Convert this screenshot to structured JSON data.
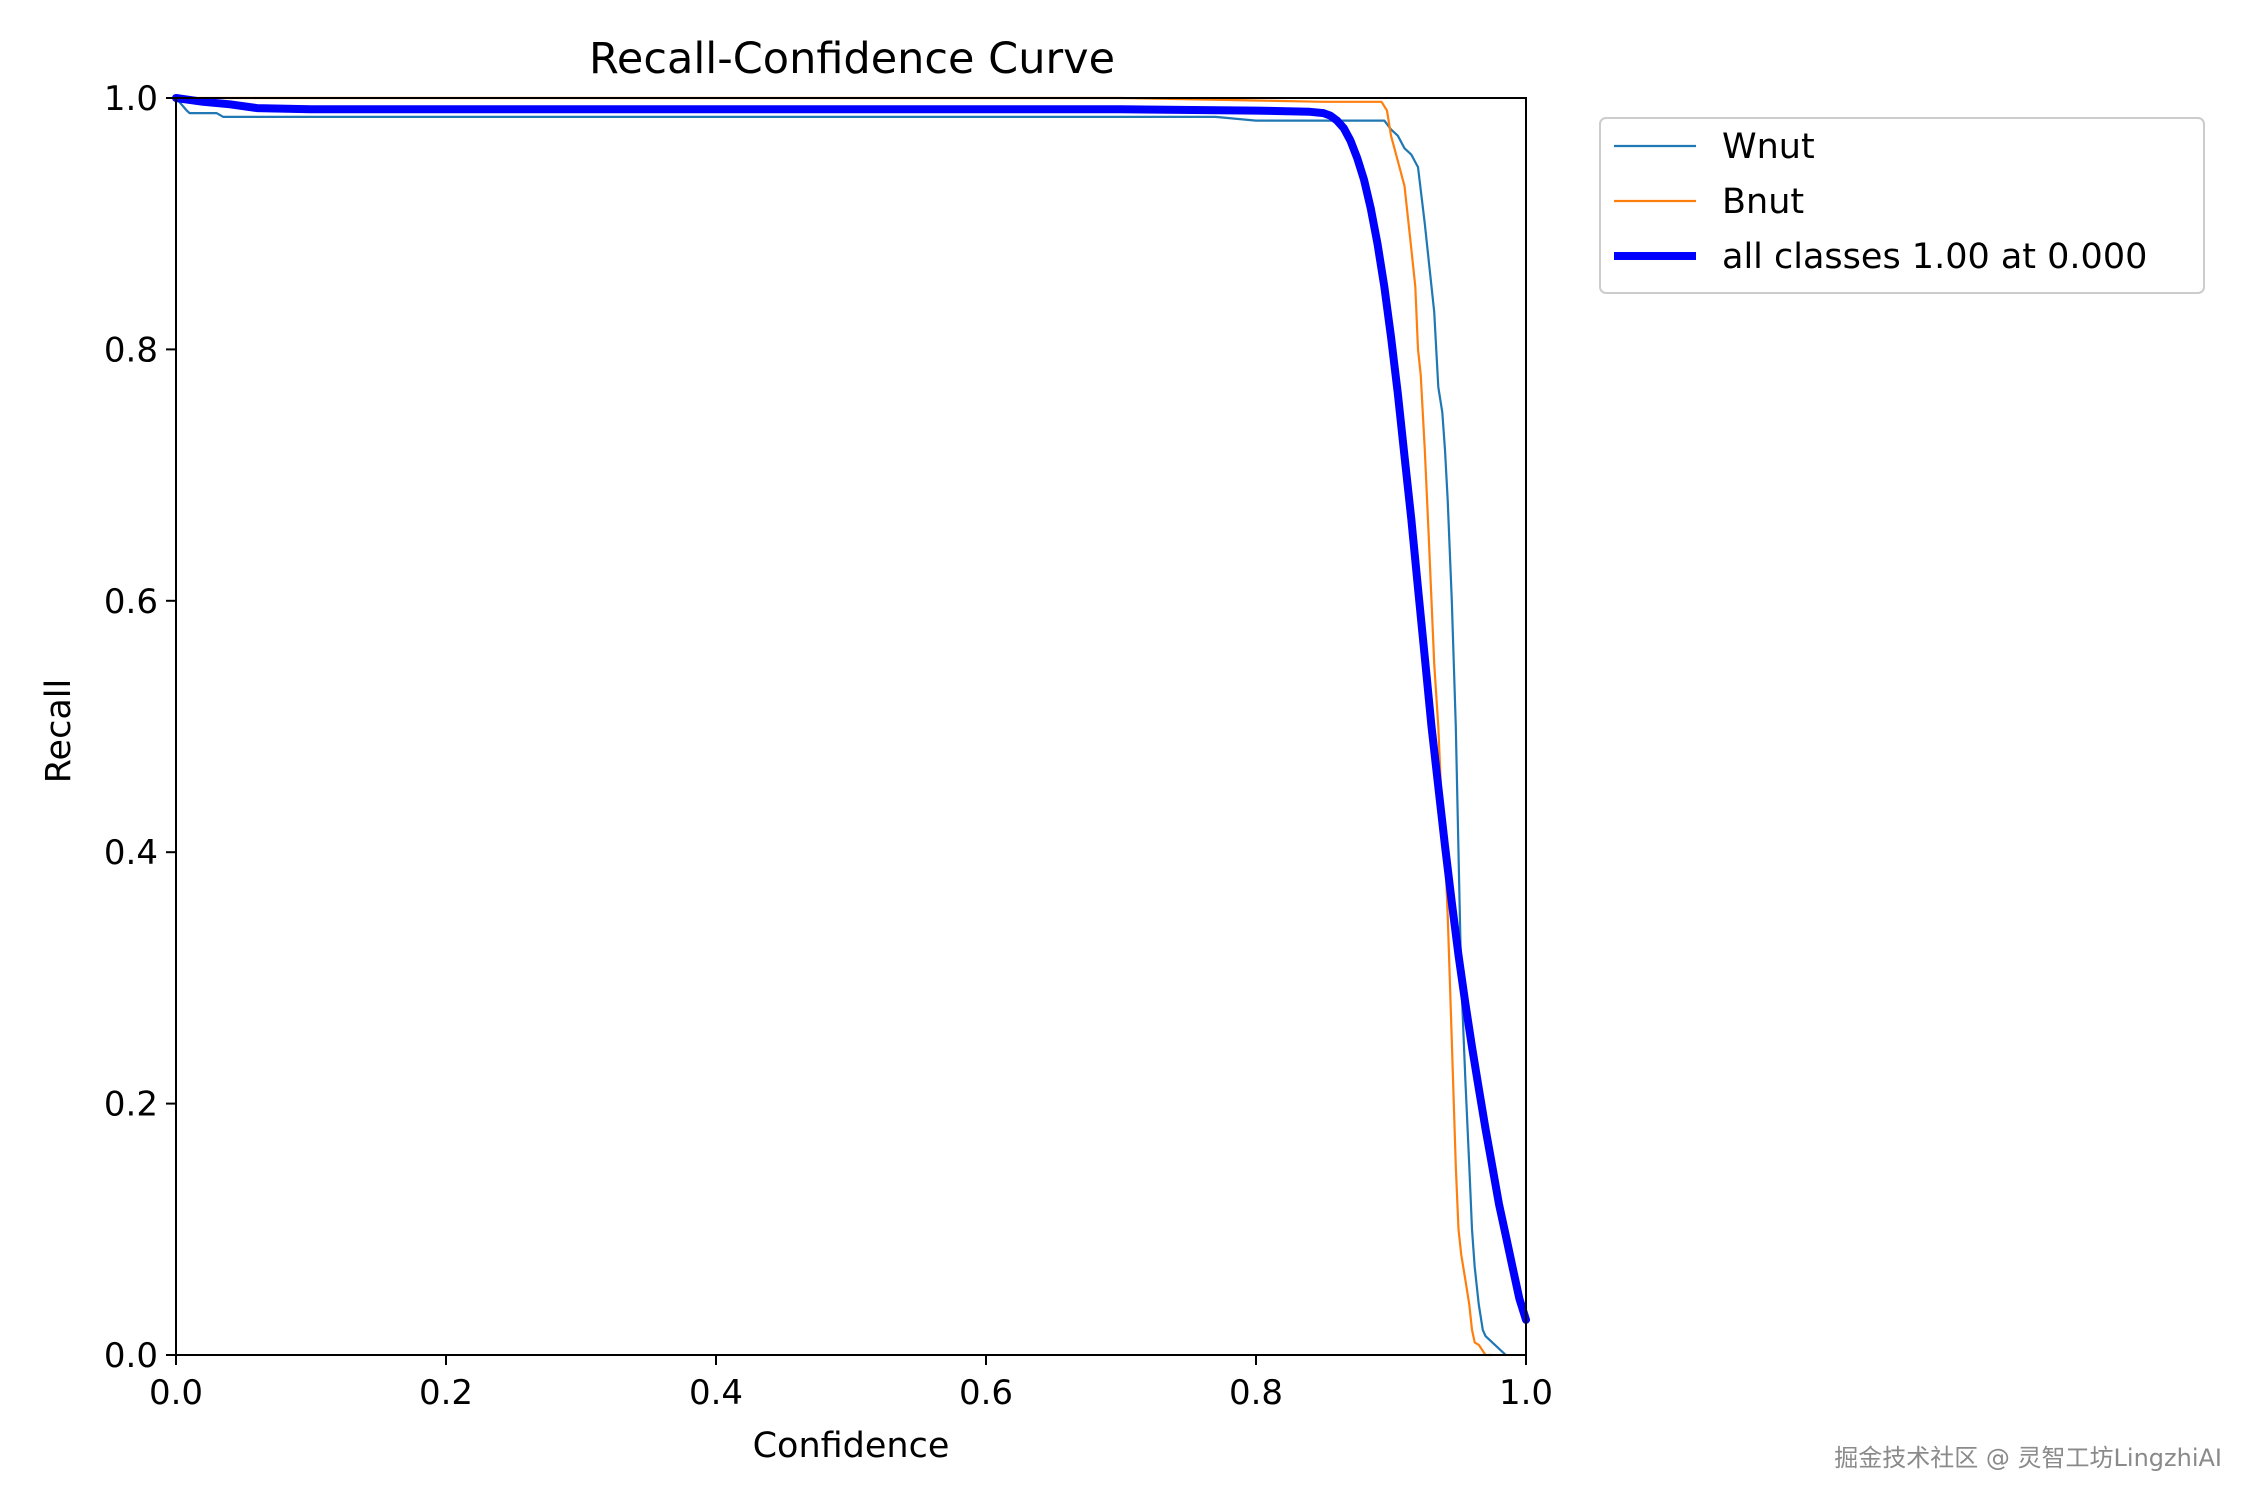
{
  "chart_data": {
    "type": "line",
    "title": "Recall-Confidence Curve",
    "xlabel": "Confidence",
    "ylabel": "Recall",
    "xlim": [
      0.0,
      1.0
    ],
    "ylim": [
      0.0,
      1.0
    ],
    "xticks": [
      "0.0",
      "0.2",
      "0.4",
      "0.6",
      "0.8",
      "1.0"
    ],
    "yticks": [
      "0.0",
      "0.2",
      "0.4",
      "0.6",
      "0.8",
      "1.0"
    ],
    "grid": false,
    "legend_position": "outside-upper-right",
    "series": [
      {
        "name": "Wnut",
        "color": "#1f77b4",
        "x": [
          0.0,
          0.008,
          0.01,
          0.03,
          0.035,
          0.1,
          0.3,
          0.5,
          0.7,
          0.77,
          0.8,
          0.85,
          0.88,
          0.895,
          0.9,
          0.905,
          0.91,
          0.915,
          0.92,
          0.925,
          0.928,
          0.93,
          0.932,
          0.935,
          0.938,
          0.94,
          0.942,
          0.945,
          0.948,
          0.95,
          0.952,
          0.955,
          0.958,
          0.96,
          0.962,
          0.965,
          0.968,
          0.97,
          0.975,
          0.98,
          0.985
        ],
        "y": [
          1.0,
          0.99,
          0.988,
          0.988,
          0.985,
          0.985,
          0.985,
          0.985,
          0.985,
          0.985,
          0.982,
          0.982,
          0.982,
          0.982,
          0.975,
          0.97,
          0.96,
          0.955,
          0.945,
          0.9,
          0.87,
          0.85,
          0.83,
          0.77,
          0.75,
          0.72,
          0.68,
          0.6,
          0.5,
          0.4,
          0.3,
          0.22,
          0.15,
          0.1,
          0.07,
          0.04,
          0.02,
          0.015,
          0.01,
          0.005,
          0.0
        ]
      },
      {
        "name": "Bnut",
        "color": "#ff7f0e",
        "x": [
          0.0,
          0.1,
          0.3,
          0.5,
          0.7,
          0.8,
          0.85,
          0.88,
          0.893,
          0.897,
          0.9,
          0.905,
          0.91,
          0.915,
          0.918,
          0.92,
          0.922,
          0.925,
          0.928,
          0.93,
          0.932,
          0.935,
          0.937,
          0.94,
          0.942,
          0.945,
          0.948,
          0.95,
          0.952,
          0.955,
          0.958,
          0.96,
          0.962,
          0.965,
          0.97,
          0.975
        ],
        "y": [
          1.0,
          1.0,
          1.0,
          1.0,
          1.0,
          0.998,
          0.997,
          0.997,
          0.997,
          0.99,
          0.97,
          0.95,
          0.93,
          0.88,
          0.85,
          0.8,
          0.78,
          0.72,
          0.65,
          0.6,
          0.55,
          0.5,
          0.45,
          0.4,
          0.35,
          0.25,
          0.15,
          0.1,
          0.08,
          0.06,
          0.04,
          0.02,
          0.01,
          0.008,
          0.0,
          0.0
        ]
      },
      {
        "name": "all classes 1.00 at 0.000",
        "color": "#0000ff",
        "x": [
          0.0,
          0.02,
          0.04,
          0.06,
          0.1,
          0.3,
          0.5,
          0.7,
          0.8,
          0.84,
          0.85,
          0.855,
          0.86,
          0.865,
          0.87,
          0.875,
          0.88,
          0.885,
          0.89,
          0.895,
          0.9,
          0.905,
          0.91,
          0.915,
          0.92,
          0.925,
          0.93,
          0.935,
          0.94,
          0.945,
          0.95,
          0.955,
          0.96,
          0.965,
          0.97,
          0.975,
          0.98,
          0.985,
          0.99,
          0.995,
          1.0
        ],
        "y": [
          1.0,
          0.997,
          0.995,
          0.992,
          0.991,
          0.991,
          0.991,
          0.991,
          0.99,
          0.989,
          0.988,
          0.986,
          0.982,
          0.976,
          0.966,
          0.952,
          0.935,
          0.912,
          0.884,
          0.85,
          0.81,
          0.765,
          0.715,
          0.665,
          0.61,
          0.555,
          0.5,
          0.452,
          0.405,
          0.36,
          0.318,
          0.28,
          0.245,
          0.212,
          0.18,
          0.15,
          0.12,
          0.095,
          0.07,
          0.045,
          0.028
        ]
      }
    ]
  },
  "watermark": "掘金技术社区 @ 灵智工坊LingzhiAI"
}
